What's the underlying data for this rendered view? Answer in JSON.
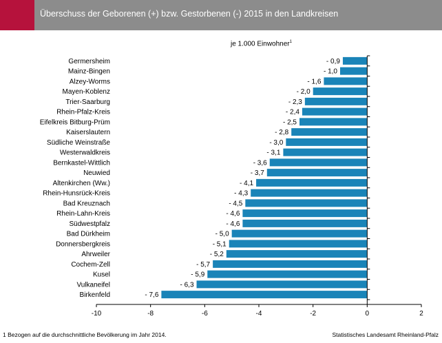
{
  "header": {
    "title": "Überschuss der Geborenen (+) bzw. Gestorbenen (-) 2015 in den Landkreisen",
    "accent_color": "#b6123c",
    "bar_color": "#8c8c8c"
  },
  "chart_data": {
    "type": "bar",
    "orientation": "horizontal",
    "subtitle": "je 1.000 Einwohner",
    "subtitle_sup": "1",
    "categories": [
      "Germersheim",
      "Mainz-Bingen",
      "Alzey-Worms",
      "Mayen-Koblenz",
      "Trier-Saarburg",
      "Rhein-Pfalz-Kreis",
      "Eifelkreis Bitburg-Prüm",
      "Kaiserslautern",
      "Südliche Weinstraße",
      "Westerwaldkreis",
      "Bernkastel-Wittlich",
      "Neuwied",
      "Altenkirchen (Ww.)",
      "Rhein-Hunsrück-Kreis",
      "Bad Kreuznach",
      "Rhein-Lahn-Kreis",
      "Südwestpfalz",
      "Bad Dürkheim",
      "Donnersbergkreis",
      "Ahrweiler",
      "Cochem-Zell",
      "Kusel",
      "Vulkaneifel",
      "Birkenfeld"
    ],
    "values": [
      -0.9,
      -1.0,
      -1.6,
      -2.0,
      -2.3,
      -2.4,
      -2.5,
      -2.8,
      -3.0,
      -3.1,
      -3.6,
      -3.7,
      -4.1,
      -4.3,
      -4.5,
      -4.6,
      -4.6,
      -5.0,
      -5.1,
      -5.2,
      -5.7,
      -5.9,
      -6.3,
      -7.6
    ],
    "value_labels": [
      "- 0,9",
      "- 1,0",
      "- 1,6",
      "- 2,0",
      "- 2,3",
      "- 2,4",
      "- 2,5",
      "- 2,8",
      "- 3,0",
      "- 3,1",
      "- 3,6",
      "- 3,7",
      "- 4,1",
      "- 4,3",
      "- 4,5",
      "- 4,6",
      "- 4,6",
      "- 5,0",
      "- 5,1",
      "- 5,2",
      "- 5,7",
      "- 5,9",
      "- 6,3",
      "- 7,6"
    ],
    "xlim": [
      -10,
      2
    ],
    "xticks": [
      -10,
      -8,
      -6,
      -4,
      -2,
      0,
      2
    ],
    "xtick_labels": [
      "-10",
      "-8",
      "-6",
      "-4",
      "-2",
      "0",
      "2"
    ],
    "color": "#1a84b8",
    "grid": false
  },
  "footnote": "1 Bezogen auf die durchschnittliche Bevölkerung im Jahr 2014.",
  "source": "Statistisches Landesamt Rheinland-Pfalz"
}
